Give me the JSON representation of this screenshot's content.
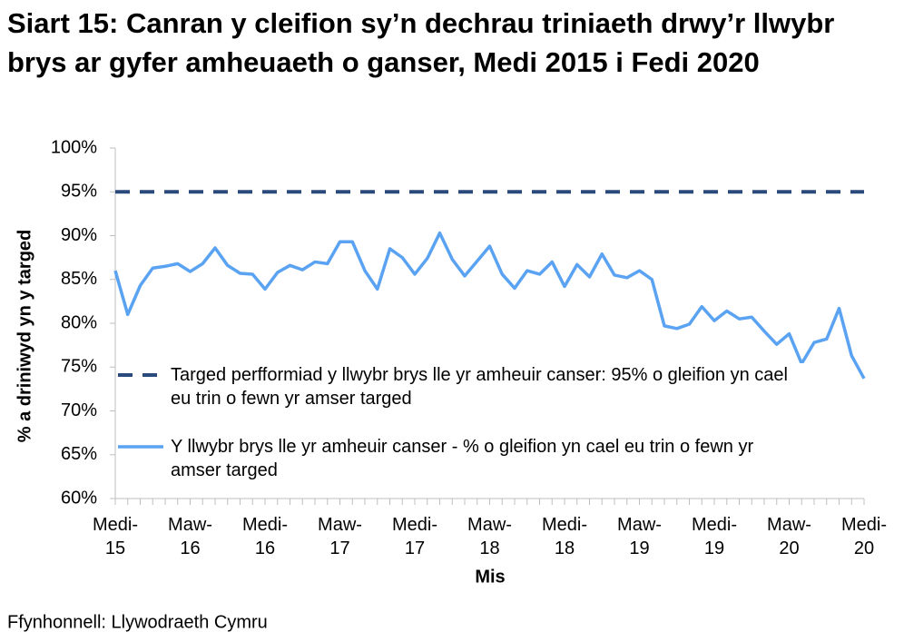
{
  "chart_data": {
    "type": "line",
    "title": "Siart 15: Canran y cleifion sy’n dechrau triniaeth drwy’r llwybr brys ar gyfer amheuaeth o ganser, Medi 2015 i Fedi 2020",
    "x_label": "Mis",
    "y_label": "% a driniwyd yn y targed",
    "source": "Ffynhonnell: Llywodraeth Cymru",
    "categories": [
      "Medi-15",
      null,
      null,
      null,
      null,
      null,
      "Maw-16",
      null,
      null,
      null,
      null,
      null,
      "Medi-16",
      null,
      null,
      null,
      null,
      null,
      "Maw-17",
      null,
      null,
      null,
      null,
      null,
      "Medi-17",
      null,
      null,
      null,
      null,
      null,
      "Maw-18",
      null,
      null,
      null,
      null,
      null,
      "Medi-18",
      null,
      null,
      null,
      null,
      null,
      "Maw-19",
      null,
      null,
      null,
      null,
      null,
      "Medi-19",
      null,
      null,
      null,
      null,
      null,
      "Maw-20",
      null,
      null,
      null,
      null,
      null,
      "Medi-20"
    ],
    "series": [
      {
        "name": "Targed perfformiad y llwybr brys lle yr amheuir canser: 95% o gleifion yn cael eu trin o fewn yr amser targed",
        "color": "#2a4a7c",
        "dashed": true,
        "values": [
          95,
          95,
          95,
          95,
          95,
          95,
          95,
          95,
          95,
          95,
          95,
          95,
          95,
          95,
          95,
          95,
          95,
          95,
          95,
          95,
          95,
          95,
          95,
          95,
          95,
          95,
          95,
          95,
          95,
          95,
          95,
          95,
          95,
          95,
          95,
          95,
          95,
          95,
          95,
          95,
          95,
          95,
          95,
          95,
          95,
          95,
          95,
          95,
          95,
          95,
          95,
          95,
          95,
          95,
          95,
          95,
          95,
          95,
          95,
          95,
          95
        ]
      },
      {
        "name": "Y llwybr brys lle yr amheuir canser - % o gleifion yn cael eu trin o fewn yr amser targed",
        "color": "#5aa2f2",
        "dashed": false,
        "values": [
          86.0,
          81.0,
          84.3,
          86.3,
          86.5,
          86.8,
          85.9,
          86.8,
          88.6,
          86.6,
          85.7,
          85.6,
          83.9,
          85.8,
          86.6,
          86.1,
          87.0,
          86.8,
          89.3,
          89.3,
          86.0,
          83.9,
          88.5,
          87.5,
          85.6,
          87.4,
          90.3,
          87.3,
          85.4,
          87.1,
          88.8,
          85.6,
          84.0,
          86.0,
          85.6,
          87.0,
          84.2,
          86.7,
          85.3,
          87.9,
          85.5,
          85.2,
          86.0,
          85.0,
          79.7,
          79.4,
          79.9,
          81.9,
          80.3,
          81.4,
          80.5,
          80.7,
          79.1,
          77.6,
          78.8,
          75.4,
          77.8,
          78.2,
          81.7,
          76.3,
          73.7
        ]
      }
    ],
    "ylim": [
      60,
      100
    ],
    "yticks": [
      {
        "value": 60,
        "label": "60%"
      },
      {
        "value": 65,
        "label": "65%"
      },
      {
        "value": 70,
        "label": "70%"
      },
      {
        "value": 75,
        "label": "75%"
      },
      {
        "value": 80,
        "label": "80%"
      },
      {
        "value": 85,
        "label": "85%"
      },
      {
        "value": 90,
        "label": "90%"
      },
      {
        "value": 95,
        "label": "95%"
      },
      {
        "value": 100,
        "label": "100%"
      }
    ],
    "grid": false
  }
}
